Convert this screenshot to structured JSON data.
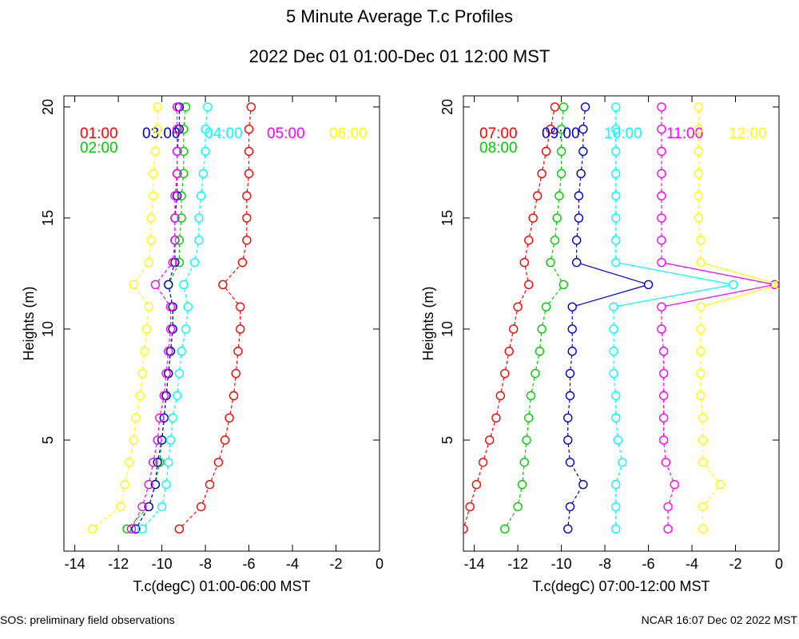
{
  "title": "5 Minute Average T.c Profiles",
  "subtitle": "2022 Dec 01 01:00-Dec 01 12:00 MST",
  "footer_left": "SOS: preliminary field observations",
  "footer_right": "NCAR 16:07 Dec 02 2022 MST",
  "heights": [
    1,
    2,
    3,
    4,
    5,
    6,
    7,
    8,
    9,
    10,
    11,
    12,
    13,
    14,
    15,
    16,
    17,
    18,
    19,
    20
  ],
  "chart_data": [
    {
      "type": "line",
      "xlabel": "T.c(degC) 01:00-06:00 MST",
      "ylabel": "Heights (m)",
      "xlim": [
        -14.5,
        0
      ],
      "ylim": [
        0,
        20.5
      ],
      "xticks": [
        -14,
        -12,
        -10,
        -8,
        -6,
        -4,
        -2,
        0
      ],
      "xtick_labels": [
        "-14",
        "-12",
        "-10",
        "-8",
        "-6",
        "-4",
        "-2",
        "0"
      ],
      "yticks": [
        5,
        10,
        15,
        20
      ],
      "ytick_labels": [
        "5",
        "10",
        "15",
        "20"
      ],
      "series": [
        {
          "name": "01:00",
          "color": "#ff0000",
          "values": [
            -9.2,
            -8.2,
            -7.8,
            -7.4,
            -7.1,
            -6.9,
            -6.7,
            -6.6,
            -6.5,
            -6.4,
            -6.4,
            -7.2,
            -6.3,
            -6.1,
            -6.1,
            -6.1,
            -6.0,
            -6.0,
            -6.0,
            -5.9
          ]
        },
        {
          "name": "02:00",
          "color": "#00cc00",
          "values": [
            -11.6,
            -10.6,
            -10.3,
            -10.1,
            -10.0,
            -9.9,
            -9.8,
            -9.7,
            -9.6,
            -9.5,
            -9.5,
            -9.7,
            -9.2,
            -9.2,
            -9.1,
            -9.1,
            -9.0,
            -9.0,
            -9.0,
            -8.9
          ]
        },
        {
          "name": "03:00",
          "color": "#0000cc",
          "values": [
            -11.2,
            -10.6,
            -10.3,
            -10.2,
            -10.0,
            -9.9,
            -9.8,
            -9.7,
            -9.6,
            -9.5,
            -9.5,
            -9.7,
            -9.4,
            -9.4,
            -9.4,
            -9.3,
            -9.3,
            -9.3,
            -9.2,
            -9.2
          ]
        },
        {
          "name": "04:00",
          "color": "#00ffff",
          "values": [
            -10.9,
            -10.0,
            -9.8,
            -9.7,
            -9.6,
            -9.5,
            -9.3,
            -9.2,
            -9.1,
            -8.9,
            -8.8,
            -9.0,
            -8.5,
            -8.3,
            -8.3,
            -8.2,
            -8.1,
            -8.0,
            -8.0,
            -7.9
          ]
        },
        {
          "name": "05:00",
          "color": "#ff00ff",
          "values": [
            -11.4,
            -10.9,
            -10.6,
            -10.4,
            -10.2,
            -10.1,
            -9.9,
            -9.8,
            -9.7,
            -9.6,
            -9.6,
            -10.3,
            -9.5,
            -9.4,
            -9.4,
            -9.4,
            -9.3,
            -9.3,
            -9.3,
            -9.3
          ]
        },
        {
          "name": "06:00",
          "color": "#ffff00",
          "values": [
            -13.2,
            -11.9,
            -11.7,
            -11.5,
            -11.3,
            -11.2,
            -11.0,
            -10.9,
            -10.8,
            -10.7,
            -10.6,
            -11.3,
            -10.6,
            -10.5,
            -10.5,
            -10.4,
            -10.4,
            -10.3,
            -10.2,
            -10.2
          ]
        }
      ]
    },
    {
      "type": "line",
      "xlabel": "T.c(degC) 07:00-12:00 MST",
      "ylabel": "Heights (m)",
      "xlim": [
        -14.5,
        0
      ],
      "ylim": [
        0,
        20.5
      ],
      "xticks": [
        -14,
        -12,
        -10,
        -8,
        -6,
        -4,
        -2,
        0
      ],
      "xtick_labels": [
        "-14",
        "-12",
        "-10",
        "-8",
        "-6",
        "-4",
        "-2",
        "0"
      ],
      "yticks": [
        5,
        10,
        15,
        20
      ],
      "ytick_labels": [
        "5",
        "10",
        "15",
        "20"
      ],
      "series": [
        {
          "name": "07:00",
          "color": "#ff0000",
          "values": [
            -14.5,
            -14.2,
            -13.9,
            -13.6,
            -13.3,
            -13.0,
            -12.8,
            -12.6,
            -12.4,
            -12.2,
            -12.0,
            -11.5,
            -11.7,
            -11.5,
            -11.3,
            -11.1,
            -10.9,
            -10.7,
            -10.5,
            -10.3
          ]
        },
        {
          "name": "08:00",
          "color": "#00cc00",
          "values": [
            -12.6,
            -12.0,
            -11.8,
            -11.7,
            -11.6,
            -11.5,
            -11.4,
            -11.2,
            -11.0,
            -10.9,
            -10.7,
            -9.9,
            -10.5,
            -10.3,
            -10.2,
            -10.1,
            -10.0,
            -10.0,
            -10.0,
            -9.9
          ]
        },
        {
          "name": "09:00",
          "color": "#0000cc",
          "values": [
            -9.7,
            -9.6,
            -9.0,
            -9.6,
            -9.7,
            -9.7,
            -9.6,
            -9.6,
            -9.5,
            -9.5,
            -9.5,
            -6.0,
            -9.3,
            -9.3,
            -9.2,
            -9.2,
            -9.1,
            -9.0,
            -9.0,
            -8.9
          ]
        },
        {
          "name": "10:00",
          "color": "#00ffff",
          "values": [
            -7.5,
            -7.5,
            -7.5,
            -7.2,
            -7.4,
            -7.5,
            -7.5,
            -7.6,
            -7.6,
            -7.6,
            -7.6,
            -2.1,
            -7.5,
            -7.5,
            -7.5,
            -7.5,
            -7.5,
            -7.5,
            -7.5,
            -7.5
          ]
        },
        {
          "name": "11:00",
          "color": "#ff00ff",
          "values": [
            -5.1,
            -5.1,
            -4.8,
            -5.2,
            -5.3,
            -5.3,
            -5.3,
            -5.3,
            -5.3,
            -5.4,
            -5.4,
            -0.2,
            -5.4,
            -5.4,
            -5.4,
            -5.4,
            -5.4,
            -5.4,
            -5.4,
            -5.4
          ]
        },
        {
          "name": "12:00",
          "color": "#ffff00",
          "values": [
            -3.5,
            -3.5,
            -2.7,
            -3.5,
            -3.5,
            -3.5,
            -3.6,
            -3.6,
            -3.6,
            -3.6,
            -3.6,
            0.0,
            -3.6,
            -3.6,
            -3.7,
            -3.7,
            -3.7,
            -3.7,
            -3.7,
            -3.7
          ]
        }
      ]
    }
  ]
}
